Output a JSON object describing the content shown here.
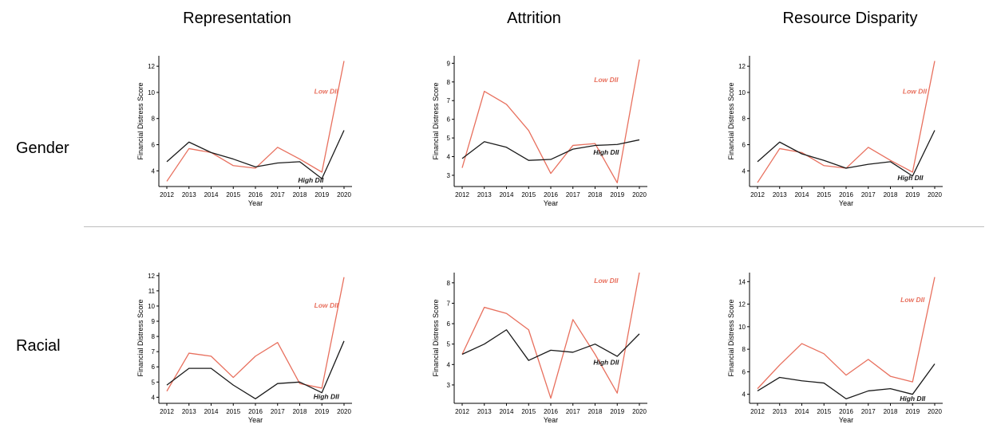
{
  "headers": {
    "columns": [
      "Representation",
      "Attrition",
      "Resource Disparity"
    ],
    "rows": [
      "Gender",
      "Racial"
    ]
  },
  "colors": {
    "low_dii": "#e8705e",
    "high_dii": "#1a1a1a"
  },
  "chart_data": [
    {
      "type": "line",
      "row": "Gender",
      "column": "Representation",
      "x": [
        2012,
        2013,
        2014,
        2015,
        2016,
        2017,
        2018,
        2019,
        2020
      ],
      "xlabel": "Year",
      "ylabel": "Financial Distress Score",
      "ylim": [
        2.8,
        12.8
      ],
      "yticks": [
        4,
        6,
        8,
        10,
        12
      ],
      "series": [
        {
          "name": "Low DII",
          "values": [
            3.2,
            5.7,
            5.4,
            4.4,
            4.2,
            5.8,
            4.9,
            3.9,
            12.4
          ],
          "label_pos": [
            2019.2,
            9.9
          ]
        },
        {
          "name": "High DII",
          "values": [
            4.7,
            6.2,
            5.4,
            4.9,
            4.3,
            4.6,
            4.7,
            3.4,
            7.1
          ],
          "label_pos": [
            2018.5,
            3.1
          ]
        }
      ]
    },
    {
      "type": "line",
      "row": "Gender",
      "column": "Attrition",
      "x": [
        2012,
        2013,
        2014,
        2015,
        2016,
        2017,
        2018,
        2019,
        2020
      ],
      "xlabel": "Year",
      "ylabel": "Financial Distress Score",
      "ylim": [
        2.4,
        9.4
      ],
      "yticks": [
        3,
        4,
        5,
        6,
        7,
        8,
        9
      ],
      "series": [
        {
          "name": "Low DII",
          "values": [
            3.4,
            7.5,
            6.8,
            5.4,
            3.1,
            4.6,
            4.7,
            2.6,
            9.2
          ],
          "label_pos": [
            2018.5,
            8.0
          ]
        },
        {
          "name": "High DII",
          "values": [
            3.9,
            4.8,
            4.5,
            3.8,
            3.85,
            4.4,
            4.6,
            4.65,
            4.9
          ],
          "label_pos": [
            2018.5,
            4.1
          ]
        }
      ]
    },
    {
      "type": "line",
      "row": "Gender",
      "column": "Resource Disparity",
      "x": [
        2012,
        2013,
        2014,
        2015,
        2016,
        2017,
        2018,
        2019,
        2020
      ],
      "xlabel": "Year",
      "ylabel": "Financial Distress Score",
      "ylim": [
        2.8,
        12.8
      ],
      "yticks": [
        4,
        6,
        8,
        10,
        12
      ],
      "series": [
        {
          "name": "Low DII",
          "values": [
            3.1,
            5.7,
            5.4,
            4.4,
            4.2,
            5.8,
            4.8,
            3.9,
            12.4
          ],
          "label_pos": [
            2019.1,
            9.9
          ]
        },
        {
          "name": "High DII",
          "values": [
            4.7,
            6.2,
            5.3,
            4.8,
            4.2,
            4.5,
            4.7,
            3.6,
            7.1
          ],
          "label_pos": [
            2018.9,
            3.3
          ]
        }
      ]
    },
    {
      "type": "line",
      "row": "Racial",
      "column": "Representation",
      "x": [
        2012,
        2013,
        2014,
        2015,
        2016,
        2017,
        2018,
        2019,
        2020
      ],
      "xlabel": "Year",
      "ylabel": "Financial Distress Score",
      "ylim": [
        3.6,
        12.2
      ],
      "yticks": [
        4,
        5,
        6,
        7,
        8,
        9,
        10,
        11,
        12
      ],
      "series": [
        {
          "name": "Low DII",
          "values": [
            4.4,
            6.9,
            6.7,
            5.3,
            6.7,
            7.6,
            4.9,
            4.6,
            11.9
          ],
          "label_pos": [
            2019.2,
            9.9
          ]
        },
        {
          "name": "High DII",
          "values": [
            4.8,
            5.9,
            5.9,
            4.8,
            3.9,
            4.9,
            5.0,
            4.3,
            7.7
          ],
          "label_pos": [
            2019.2,
            3.9
          ]
        }
      ]
    },
    {
      "type": "line",
      "row": "Racial",
      "column": "Attrition",
      "x": [
        2012,
        2013,
        2014,
        2015,
        2016,
        2017,
        2018,
        2019,
        2020
      ],
      "xlabel": "Year",
      "ylabel": "Financial Distress Score",
      "ylim": [
        2.1,
        8.5
      ],
      "yticks": [
        3,
        4,
        5,
        6,
        7,
        8
      ],
      "series": [
        {
          "name": "Low DII",
          "values": [
            4.5,
            6.8,
            6.5,
            5.7,
            2.35,
            6.2,
            4.5,
            2.6,
            8.5
          ],
          "label_pos": [
            2018.5,
            8.0
          ]
        },
        {
          "name": "High DII",
          "values": [
            4.5,
            5.0,
            5.7,
            4.2,
            4.7,
            4.6,
            5.0,
            4.4,
            5.5
          ],
          "label_pos": [
            2018.5,
            4.0
          ]
        }
      ]
    },
    {
      "type": "line",
      "row": "Racial",
      "column": "Resource Disparity",
      "x": [
        2012,
        2013,
        2014,
        2015,
        2016,
        2017,
        2018,
        2019,
        2020
      ],
      "xlabel": "Year",
      "ylabel": "Financial Distress Score",
      "ylim": [
        3.2,
        14.8
      ],
      "yticks": [
        4,
        6,
        8,
        10,
        12,
        14
      ],
      "series": [
        {
          "name": "Low DII",
          "values": [
            4.5,
            6.6,
            8.5,
            7.6,
            5.7,
            7.1,
            5.6,
            5.1,
            14.4
          ],
          "label_pos": [
            2019.0,
            12.2
          ]
        },
        {
          "name": "High DII",
          "values": [
            4.3,
            5.5,
            5.2,
            5.0,
            3.6,
            4.3,
            4.5,
            4.0,
            6.7
          ],
          "label_pos": [
            2019.0,
            3.4
          ]
        }
      ]
    }
  ]
}
